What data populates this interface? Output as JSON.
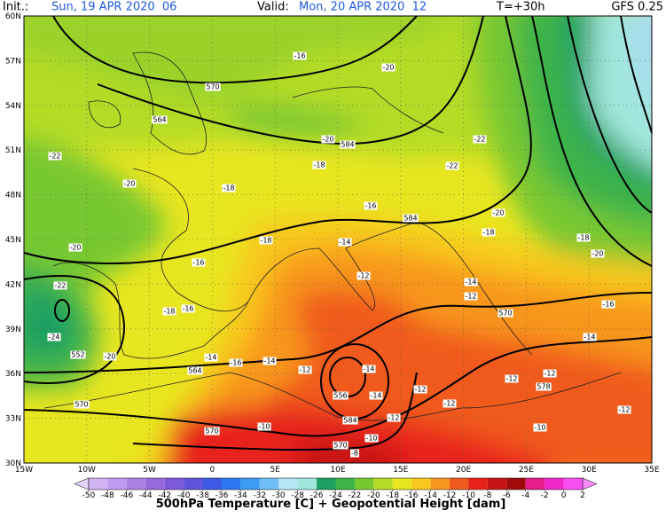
{
  "header": {
    "init_label": "Init.:",
    "init_time": "Sun, 19 APR 2020  06",
    "valid_label": "Valid:",
    "valid_time": "Mon, 20 APR 2020  12",
    "forecast_hour": "T=+30h",
    "model": "GFS 0.25"
  },
  "map": {
    "lat_labels": [
      "60N",
      "57N",
      "54N",
      "51N",
      "48N",
      "45N",
      "42N",
      "39N",
      "36N",
      "33N",
      "30N"
    ],
    "lon_labels": [
      "15W",
      "10W",
      "5W",
      "0",
      "5E",
      "10E",
      "15E",
      "20E",
      "25E",
      "30E",
      "35E"
    ],
    "contour_labels": [
      "-22",
      "-20",
      "-18",
      "-18",
      "-20",
      "584",
      "-22",
      "-22",
      "-20",
      "-18",
      "-16",
      "584",
      "-14",
      "-18",
      "-20",
      "-16",
      "-22",
      "-12",
      "-14",
      "-12",
      "-18",
      "-16",
      "-24",
      "-20",
      "552",
      "-14",
      "-16",
      "-14",
      "-12",
      "-14",
      "-12",
      "556",
      "-14",
      "-12",
      "584",
      "-12",
      "-10",
      "570",
      "-10",
      "570",
      "-8",
      "-10",
      "-12",
      "-14",
      "-16",
      "578",
      "-12",
      "-12",
      "570",
      "564",
      "-18",
      "-20",
      "570",
      "-16",
      "-20",
      "570",
      "564"
    ]
  },
  "colorbar": {
    "ticks": [
      -50,
      -48,
      -46,
      -44,
      -42,
      -40,
      -38,
      -36,
      -34,
      -32,
      -30,
      -28,
      -26,
      -24,
      -22,
      -20,
      -18,
      -16,
      -14,
      -12,
      -10,
      -8,
      -6,
      -4,
      -2,
      0,
      2
    ],
    "title": "500hPa Temperature [C] + Geopotential Height [dam]"
  }
}
